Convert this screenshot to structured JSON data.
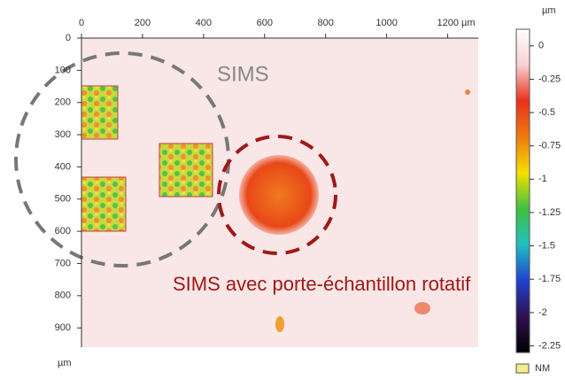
{
  "chart_data": {
    "type": "image",
    "annotations": [
      "SIMS",
      "SIMS avec porte-échantillon rotatif"
    ],
    "xlim": [
      0,
      1300
    ],
    "xticks": [
      0,
      200,
      400,
      600,
      800,
      1000,
      {
        "value": 1200,
        "label": "1200 µm"
      }
    ],
    "ylim": [
      0,
      960
    ],
    "yticks": [
      0,
      100,
      200,
      300,
      400,
      500,
      600,
      700,
      800,
      900
    ],
    "y_axis_label": "µm",
    "colorbar": {
      "unit": "µm",
      "lim": [
        0.125,
        -2.3
      ],
      "ticks": [
        0,
        -0.25,
        -0.5,
        -0.75,
        -1,
        -1.25,
        -1.5,
        -1.75,
        -2,
        -2.25
      ],
      "colors": [
        "#ffffff",
        "#f8d0d0",
        "#e8301c",
        "#f07a10",
        "#f5e000",
        "#40c040",
        "#20c0c0",
        "#2040d0",
        "#301050",
        "#000000"
      ],
      "nm_label": "NM",
      "nm_color": "#f3ee8a"
    }
  }
}
